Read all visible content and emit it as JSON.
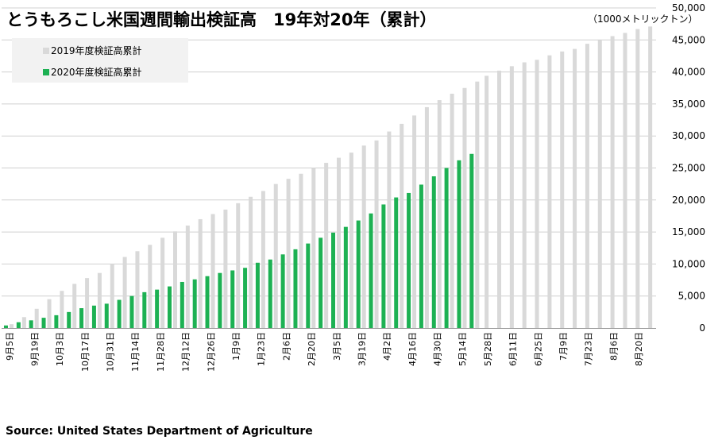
{
  "source": "Source: United States Department of Agriculture",
  "colors": {
    "series_2019": "#d9d9d9",
    "series_2020": "#1db153",
    "grid": "#d0d0d0",
    "legend_bg": "#f2f2f2"
  },
  "chart_data": {
    "type": "bar",
    "title": "とうもろこし米国週間輸出検証高　19年対20年（累計）",
    "unit_label": "（1000メトリックトン）",
    "ylim": [
      0,
      50000
    ],
    "y_ticks": [
      "0",
      "5,000",
      "10,000",
      "15,000",
      "20,000",
      "25,000",
      "30,000",
      "35,000",
      "40,000",
      "45,000",
      "50,000"
    ],
    "grid": true,
    "legend_position": "top-left",
    "categories": [
      "9月5日",
      "9月12日",
      "9月19日",
      "9月26日",
      "10月3日",
      "10月10日",
      "10月17日",
      "10月24日",
      "10月31日",
      "11月7日",
      "11月14日",
      "11月21日",
      "11月28日",
      "12月5日",
      "12月12日",
      "12月19日",
      "12月26日",
      "1月2日",
      "1月9日",
      "1月16日",
      "1月23日",
      "1月30日",
      "2月6日",
      "2月13日",
      "2月20日",
      "2月27日",
      "3月5日",
      "3月12日",
      "3月19日",
      "3月26日",
      "4月2日",
      "4月9日",
      "4月16日",
      "4月23日",
      "4月30日",
      "5月7日",
      "5月14日",
      "5月21日",
      "5月28日",
      "6月4日",
      "6月11日",
      "6月18日",
      "6月25日",
      "7月2日",
      "7月9日",
      "7月16日",
      "7月23日",
      "7月30日",
      "8月6日",
      "8月13日",
      "8月20日",
      "8月27日"
    ],
    "x_tick_labels": [
      "9月5日",
      "9月19日",
      "10月3日",
      "10月17日",
      "10月31日",
      "11月14日",
      "11月28日",
      "12月12日",
      "12月26日",
      "1月9日",
      "1月23日",
      "2月6日",
      "2月20日",
      "3月5日",
      "3月19日",
      "4月2日",
      "4月16日",
      "4月30日",
      "5月14日",
      "5月28日",
      "6月11日",
      "6月25日",
      "7月9日",
      "7月23日",
      "8月6日",
      "8月20日"
    ],
    "series": [
      {
        "name": "2019年度検証高累計",
        "values": [
          600,
          1700,
          3000,
          4500,
          5800,
          6900,
          7800,
          8600,
          10000,
          11100,
          12000,
          13000,
          14100,
          15100,
          16000,
          17000,
          17800,
          18500,
          19500,
          20500,
          21400,
          22500,
          23300,
          24100,
          25000,
          25800,
          26600,
          27400,
          28500,
          29300,
          30700,
          31900,
          33200,
          34500,
          35600,
          36600,
          37500,
          38500,
          39400,
          40200,
          40900,
          41500,
          41900,
          42600,
          43200,
          43600,
          44400,
          45000,
          45600,
          46100,
          46700,
          47100
        ]
      },
      {
        "name": "2020年度検証高累計",
        "values": [
          400,
          900,
          1200,
          1600,
          2000,
          2500,
          3100,
          3500,
          3800,
          4400,
          5000,
          5600,
          6000,
          6500,
          7200,
          7600,
          8100,
          8600,
          9000,
          9400,
          10200,
          10700,
          11500,
          12300,
          13200,
          14100,
          14900,
          15800,
          16800,
          17900,
          19300,
          20400,
          21100,
          22400,
          23700,
          25000,
          26200,
          27200,
          null,
          null,
          null,
          null,
          null,
          null,
          null,
          null,
          null,
          null,
          null,
          null,
          null,
          null
        ]
      }
    ]
  }
}
